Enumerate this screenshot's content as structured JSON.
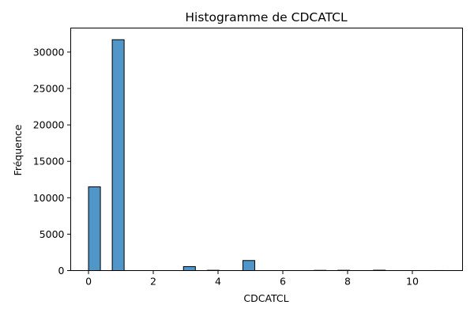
{
  "chart_data": {
    "type": "bar",
    "title": "Histogramme de CDCATCL",
    "xlabel": "CDCATCL",
    "ylabel": "Fréquence",
    "xlim": [
      -0.55,
      11.55
    ],
    "ylim": [
      0,
      33300
    ],
    "xticks": [
      0,
      2,
      4,
      6,
      8,
      10
    ],
    "yticks": [
      0,
      5000,
      10000,
      15000,
      20000,
      25000,
      30000
    ],
    "grid": false,
    "legend": "none",
    "bar_color": "#5196c9",
    "bins": [
      {
        "x0": 0.0,
        "x1": 0.367,
        "value": 11500
      },
      {
        "x0": 0.733,
        "x1": 1.1,
        "value": 31700
      },
      {
        "x0": 2.933,
        "x1": 3.3,
        "value": 550
      },
      {
        "x0": 3.667,
        "x1": 4.033,
        "value": 40
      },
      {
        "x0": 4.767,
        "x1": 5.133,
        "value": 1380
      },
      {
        "x0": 6.967,
        "x1": 7.333,
        "value": 30
      },
      {
        "x0": 7.7,
        "x1": 8.067,
        "value": 40
      },
      {
        "x0": 8.8,
        "x1": 9.167,
        "value": 50
      },
      {
        "x0": 10.633,
        "x1": 11.0,
        "value": 5
      }
    ]
  }
}
